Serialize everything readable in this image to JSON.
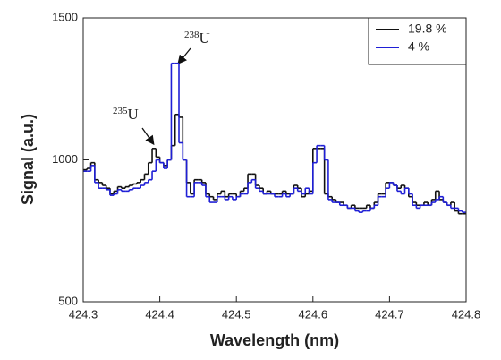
{
  "chart_data": {
    "type": "step",
    "xlabel": "Wavelength (nm)",
    "ylabel": "Signal (a.u.)",
    "x": [
      424.3,
      424.305,
      424.31,
      424.315,
      424.32,
      424.325,
      424.33,
      424.335,
      424.34,
      424.345,
      424.35,
      424.355,
      424.36,
      424.365,
      424.37,
      424.375,
      424.38,
      424.385,
      424.39,
      424.395,
      424.4,
      424.405,
      424.41,
      424.415,
      424.42,
      424.425,
      424.43,
      424.435,
      424.44,
      424.445,
      424.45,
      424.455,
      424.46,
      424.465,
      424.47,
      424.475,
      424.48,
      424.485,
      424.49,
      424.495,
      424.5,
      424.505,
      424.51,
      424.515,
      424.52,
      424.525,
      424.53,
      424.535,
      424.54,
      424.545,
      424.55,
      424.555,
      424.56,
      424.565,
      424.57,
      424.575,
      424.58,
      424.585,
      424.59,
      424.595,
      424.6,
      424.605,
      424.61,
      424.615,
      424.62,
      424.625,
      424.63,
      424.635,
      424.64,
      424.645,
      424.65,
      424.655,
      424.66,
      424.665,
      424.67,
      424.675,
      424.68,
      424.685,
      424.69,
      424.695,
      424.7,
      424.705,
      424.71,
      424.715,
      424.72,
      424.725,
      424.73,
      424.735,
      424.74,
      424.745,
      424.75,
      424.755,
      424.76,
      424.765,
      424.77,
      424.775,
      424.78,
      424.785,
      424.79,
      424.795
    ],
    "series": [
      {
        "name": "19.8 %",
        "color": "#111111",
        "values": [
          965,
          970,
          990,
          930,
          920,
          910,
          900,
          880,
          890,
          905,
          900,
          905,
          910,
          915,
          920,
          930,
          950,
          990,
          1040,
          1010,
          990,
          980,
          1000,
          1050,
          1160,
          1150,
          1000,
          920,
          880,
          930,
          930,
          920,
          880,
          870,
          860,
          880,
          890,
          870,
          880,
          880,
          870,
          890,
          900,
          950,
          950,
          910,
          900,
          880,
          890,
          880,
          880,
          880,
          890,
          880,
          880,
          910,
          900,
          870,
          880,
          890,
          1040,
          1040,
          1040,
          880,
          870,
          860,
          850,
          850,
          840,
          830,
          840,
          830,
          830,
          830,
          840,
          830,
          850,
          880,
          880,
          920,
          920,
          910,
          900,
          910,
          900,
          870,
          850,
          840,
          840,
          850,
          840,
          860,
          890,
          860,
          850,
          840,
          850,
          820,
          810,
          810
        ]
      },
      {
        "name": "4 %",
        "color": "#1f1fd6",
        "values": [
          960,
          960,
          980,
          920,
          900,
          900,
          895,
          875,
          880,
          895,
          890,
          890,
          895,
          900,
          900,
          910,
          920,
          930,
          960,
          1000,
          990,
          970,
          1000,
          1340,
          1340,
          1060,
          1000,
          870,
          870,
          920,
          920,
          910,
          870,
          850,
          850,
          870,
          870,
          860,
          870,
          860,
          870,
          880,
          880,
          920,
          930,
          900,
          890,
          880,
          880,
          880,
          870,
          870,
          880,
          870,
          880,
          900,
          890,
          880,
          900,
          880,
          990,
          1050,
          1050,
          1000,
          860,
          850,
          850,
          840,
          840,
          830,
          830,
          820,
          815,
          820,
          820,
          830,
          840,
          870,
          870,
          900,
          920,
          910,
          890,
          880,
          900,
          880,
          840,
          830,
          840,
          840,
          840,
          850,
          860,
          870,
          850,
          840,
          830,
          830,
          820,
          815
        ]
      }
    ],
    "xlim": [
      424.3,
      424.8
    ],
    "xticks": [
      424.3,
      424.4,
      424.5,
      424.6,
      424.7,
      424.8
    ],
    "ylim": [
      500,
      1500
    ],
    "yticks": [
      500,
      1000,
      1500
    ],
    "legend": "top-right",
    "annotations": [
      {
        "mass": "238",
        "element": "U"
      },
      {
        "mass": "235",
        "element": "U"
      }
    ]
  }
}
